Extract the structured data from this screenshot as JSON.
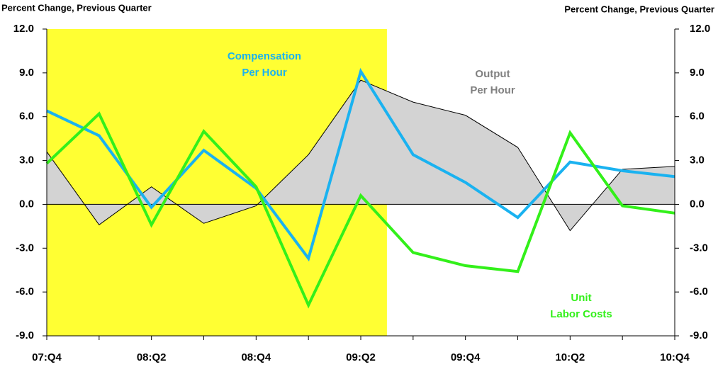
{
  "chart_data": {
    "type": "line",
    "y_axis_title": "Percent Change, Previous Quarter",
    "y2_axis_title": "Percent Change, Previous Quarter",
    "categories": [
      "07:Q4",
      null,
      "08:Q2",
      null,
      "08:Q4",
      null,
      "09:Q2",
      null,
      "09:Q4",
      null,
      "10:Q2",
      null,
      "10:Q4"
    ],
    "shaded_range": [
      0,
      6.5
    ],
    "shade_color": "#ffff33",
    "series": [
      {
        "name": "Output Per Hour",
        "kind": "area",
        "color": "#d3d3d3",
        "values": [
          3.6,
          -1.4,
          1.2,
          -1.3,
          -0.1,
          3.4,
          8.5,
          7.0,
          6.1,
          3.9,
          -1.8,
          2.4,
          2.6
        ]
      },
      {
        "name": "Compensation Per Hour",
        "kind": "line",
        "color": "#1ab2f0",
        "values": [
          6.4,
          4.7,
          -0.2,
          3.7,
          1.1,
          -3.7,
          9.1,
          3.4,
          1.5,
          -0.9,
          2.9,
          2.3,
          1.9
        ]
      },
      {
        "name": "Unit Labor Costs",
        "kind": "line",
        "color": "#33f01a",
        "values": [
          2.8,
          6.2,
          -1.4,
          5.0,
          1.2,
          -6.9,
          0.6,
          -3.3,
          -4.2,
          -4.6,
          4.9,
          -0.1,
          -0.6
        ]
      }
    ],
    "annotations": [
      {
        "lines": [
          "Compensation",
          "Per Hour"
        ],
        "color": "#1ab2f0"
      },
      {
        "lines": [
          "Output",
          "Per Hour"
        ],
        "color": "#808080"
      },
      {
        "lines": [
          "Unit",
          "Labor Costs"
        ],
        "color": "#33f01a"
      }
    ],
    "ylim": [
      -9,
      12
    ],
    "yticks": [
      {
        "value": -9,
        "label": "-9.0"
      },
      {
        "value": -6,
        "label": "-6.0"
      },
      {
        "value": -3,
        "label": "-3.0"
      },
      {
        "value": 0,
        "label": "0.0"
      },
      {
        "value": 3,
        "label": "3.0"
      },
      {
        "value": 6,
        "label": "6.0"
      },
      {
        "value": 9,
        "label": "9.0"
      },
      {
        "value": 12,
        "label": "12.0"
      }
    ],
    "y2lim": [
      -9,
      12
    ],
    "y2ticks": [
      {
        "value": -9,
        "label": "-9.0"
      },
      {
        "value": -6,
        "label": "-6.0"
      },
      {
        "value": -3,
        "label": "-3.0"
      },
      {
        "value": 0,
        "label": "0.0"
      },
      {
        "value": 3,
        "label": "3.0"
      },
      {
        "value": 6,
        "label": "6.0"
      },
      {
        "value": 9,
        "label": "9.0"
      },
      {
        "value": 12,
        "label": "12.0"
      }
    ]
  }
}
